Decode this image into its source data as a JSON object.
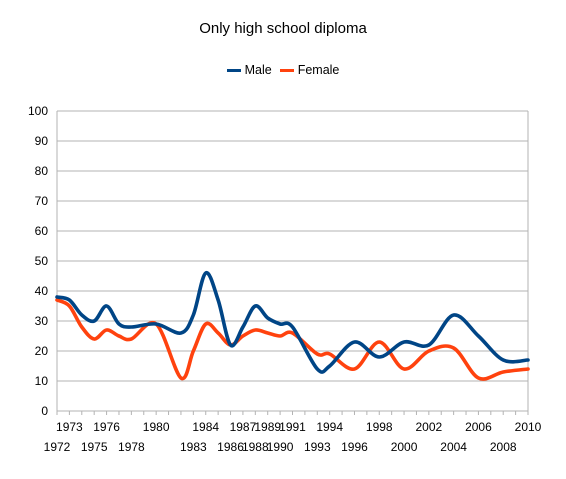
{
  "chart_data": {
    "type": "line",
    "title": "Only high school diploma",
    "xlabel": "",
    "ylabel": "",
    "ylim": [
      0,
      100
    ],
    "yticks": [
      0,
      10,
      20,
      30,
      40,
      50,
      60,
      70,
      80,
      90,
      100
    ],
    "xlim": [
      1972,
      2010
    ],
    "xticks_upper": [
      "1973",
      "1976",
      "1980",
      "1984",
      "1987",
      "1989",
      "1991",
      "1994",
      "1998",
      "2002",
      "2006",
      "2010"
    ],
    "xticks_lower": [
      "1972",
      "1975",
      "1978",
      "1983",
      "1986",
      "1988",
      "1990",
      "1993",
      "1996",
      "2000",
      "2004",
      "2008"
    ],
    "grid": true,
    "legend": "top",
    "x": [
      1972,
      1973,
      1974,
      1975,
      1976,
      1977,
      1978,
      1980,
      1982,
      1983,
      1984,
      1985,
      1986,
      1987,
      1988,
      1989,
      1990,
      1991,
      1993,
      1994,
      1996,
      1998,
      2000,
      2002,
      2004,
      2006,
      2008,
      2010
    ],
    "series": [
      {
        "name": "Male",
        "color": "#004586",
        "values": [
          38,
          37,
          32,
          30,
          35,
          29,
          28,
          29,
          26,
          32,
          46,
          37,
          22,
          28,
          35,
          31,
          29,
          28,
          14,
          15,
          23,
          18,
          23,
          22,
          32,
          25,
          17,
          17
        ]
      },
      {
        "name": "Female",
        "color": "#ff420e",
        "values": [
          37,
          35,
          28,
          24,
          27,
          25,
          24,
          29,
          11,
          20,
          29,
          26,
          22,
          25,
          27,
          26,
          25,
          26,
          19,
          19,
          14,
          23,
          14,
          20,
          21,
          11,
          13,
          14
        ]
      }
    ]
  }
}
